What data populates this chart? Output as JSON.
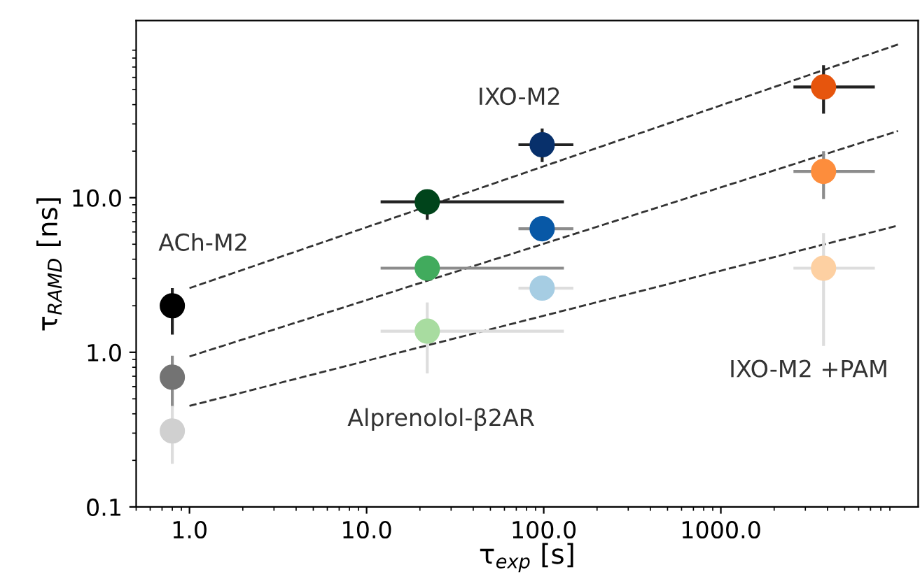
{
  "chart_data": {
    "type": "scatter",
    "xlabel": "τ$_{exp}$ [s]",
    "ylabel": "τ$_{RAMD}$ [ns]",
    "log": "xy",
    "grid": false,
    "xlim": [
      0.5,
      13000
    ],
    "ylim": [
      0.1,
      140
    ],
    "xticks": [
      {
        "value": 1,
        "label": "1.0"
      },
      {
        "value": 10,
        "label": "10.0"
      },
      {
        "value": 100,
        "label": "100.0"
      },
      {
        "value": 1000,
        "label": "1000.0"
      }
    ],
    "yticks": [
      {
        "value": 0.1,
        "label": "0.1"
      },
      {
        "value": 1,
        "label": "1.0"
      },
      {
        "value": 10,
        "label": "10.0"
      }
    ],
    "series": [
      {
        "marker": "circle",
        "x": [
          0.8,
          22,
          98,
          3800
        ],
        "values": [
          2.0,
          9.4,
          22,
          52
        ],
        "colors": [
          "#000000",
          "#00441b",
          "#08306b",
          "#e6550d"
        ],
        "color": "#222222",
        "errors": [
          [
            1.3,
            2.6
          ],
          [
            7.2,
            11.1
          ],
          [
            17,
            28
          ],
          [
            35,
            72
          ]
        ],
        "xerrors": [
          null,
          [
            12,
            130
          ],
          [
            72,
            147
          ],
          [
            2570,
            7400
          ]
        ]
      },
      {
        "marker": "circle",
        "x": [
          0.8,
          22,
          98,
          3800
        ],
        "values": [
          0.69,
          3.5,
          6.3,
          14.8
        ],
        "colors": [
          "#737373",
          "#41ab5d",
          "#0858a6",
          "#fd8d3c"
        ],
        "color": "#8c8c8c",
        "errors": [
          [
            0.44,
            0.95
          ],
          null,
          null,
          [
            9.8,
            20
          ]
        ],
        "xerrors": [
          null,
          [
            12,
            130
          ],
          [
            72,
            147
          ],
          [
            2570,
            7400
          ]
        ]
      },
      {
        "marker": "circle",
        "x": [
          0.8,
          22,
          98,
          3800
        ],
        "values": [
          0.31,
          1.37,
          2.6,
          3.5
        ],
        "colors": [
          "#d0d0d0",
          "#a8dca0",
          "#a6cde3",
          "#fdd0a2"
        ],
        "color": "#dddddd",
        "errors": [
          [
            0.19,
            0.45
          ],
          [
            0.73,
            2.1
          ],
          null,
          [
            1.1,
            5.9
          ]
        ],
        "xerrors": [
          null,
          [
            12,
            130
          ],
          [
            72,
            147
          ],
          [
            2570,
            7400
          ]
        ]
      },
      {
        "type": "line",
        "line_style": "dashed",
        "color": "#333333",
        "x": [
          1,
          10000
        ],
        "values": [
          2.6,
          98
        ],
        "marker": "none"
      },
      {
        "type": "line",
        "line_style": "dashed",
        "color": "#333333",
        "x": [
          1,
          10000
        ],
        "values": [
          0.94,
          27
        ],
        "marker": "none"
      },
      {
        "type": "line",
        "line_style": "dashed",
        "color": "#333333",
        "x": [
          1,
          10000
        ],
        "values": [
          0.45,
          6.6
        ],
        "marker": "none"
      }
    ],
    "annotations": [
      "ACh-M2",
      "IXO-M2",
      "Alprenolol-β2AR",
      "IXO-M2 +PAM"
    ]
  }
}
